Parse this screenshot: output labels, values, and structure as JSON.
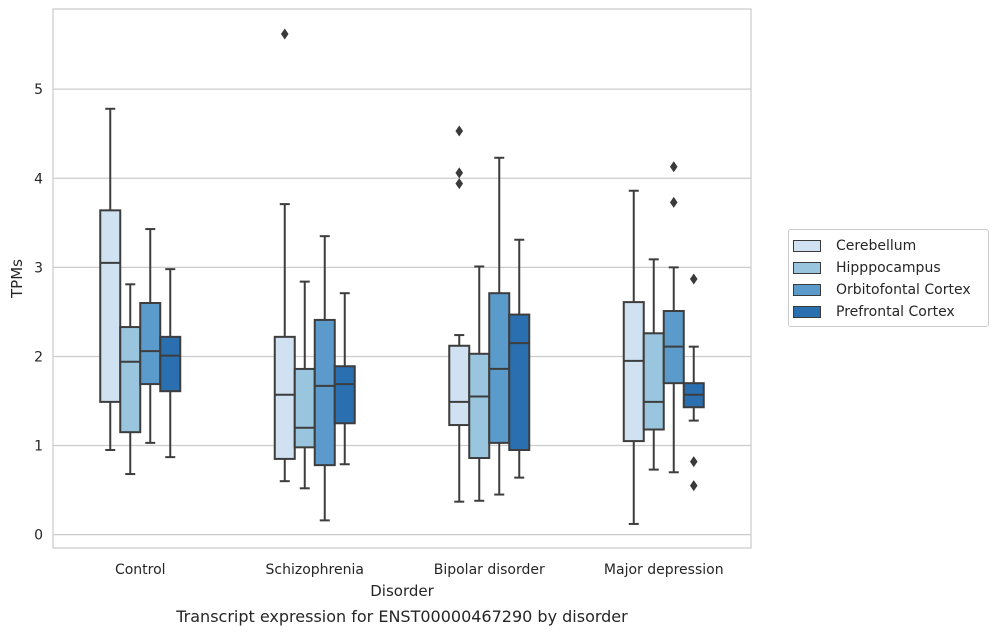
{
  "chart_data": {
    "type": "box",
    "title": "",
    "caption": "Transcript expression for ENST00000467290 by disorder",
    "xlabel": "Disorder",
    "ylabel": "TPMs",
    "ylim": [
      -0.15,
      5.9
    ],
    "yticks": [
      0,
      1,
      2,
      3,
      4,
      5
    ],
    "grid": "horizontal",
    "legend_position": "right",
    "categories": [
      "Control",
      "Schizophrenia",
      "Bipolar disorder",
      "Major depression"
    ],
    "series": [
      {
        "name": "Cerebellum",
        "color": "#d0e1f2",
        "boxes": [
          {
            "whisker_low": 0.95,
            "q1": 1.49,
            "median": 3.05,
            "q3": 3.64,
            "whisker_high": 4.78,
            "outliers": []
          },
          {
            "whisker_low": 0.6,
            "q1": 0.85,
            "median": 1.57,
            "q3": 2.22,
            "whisker_high": 3.71,
            "outliers": [
              5.62
            ]
          },
          {
            "whisker_low": 0.37,
            "q1": 1.23,
            "median": 1.49,
            "q3": 2.12,
            "whisker_high": 2.24,
            "outliers": [
              3.94,
              4.06,
              4.53
            ]
          },
          {
            "whisker_low": 0.12,
            "q1": 1.05,
            "median": 1.95,
            "q3": 2.61,
            "whisker_high": 3.86,
            "outliers": []
          }
        ]
      },
      {
        "name": "Hipppocampus",
        "color": "#9ac5de",
        "boxes": [
          {
            "whisker_low": 0.68,
            "q1": 1.15,
            "median": 1.94,
            "q3": 2.33,
            "whisker_high": 2.81,
            "outliers": []
          },
          {
            "whisker_low": 0.52,
            "q1": 0.98,
            "median": 1.2,
            "q3": 1.86,
            "whisker_high": 2.84,
            "outliers": []
          },
          {
            "whisker_low": 0.38,
            "q1": 0.86,
            "median": 1.55,
            "q3": 2.03,
            "whisker_high": 3.01,
            "outliers": []
          },
          {
            "whisker_low": 0.73,
            "q1": 1.18,
            "median": 1.49,
            "q3": 2.26,
            "whisker_high": 3.09,
            "outliers": []
          }
        ]
      },
      {
        "name": "Orbitofontal Cortex",
        "color": "#5b9bcb",
        "boxes": [
          {
            "whisker_low": 1.03,
            "q1": 1.69,
            "median": 2.06,
            "q3": 2.6,
            "whisker_high": 3.43,
            "outliers": []
          },
          {
            "whisker_low": 0.16,
            "q1": 0.78,
            "median": 1.67,
            "q3": 2.41,
            "whisker_high": 3.35,
            "outliers": []
          },
          {
            "whisker_low": 0.45,
            "q1": 1.03,
            "median": 1.86,
            "q3": 2.71,
            "whisker_high": 4.23,
            "outliers": []
          },
          {
            "whisker_low": 0.7,
            "q1": 1.7,
            "median": 2.11,
            "q3": 2.51,
            "whisker_high": 3.0,
            "outliers": [
              3.73,
              4.13
            ]
          }
        ]
      },
      {
        "name": "Prefrontal Cortex",
        "color": "#2a6fb0",
        "boxes": [
          {
            "whisker_low": 0.87,
            "q1": 1.61,
            "median": 2.01,
            "q3": 2.22,
            "whisker_high": 2.98,
            "outliers": []
          },
          {
            "whisker_low": 0.79,
            "q1": 1.25,
            "median": 1.69,
            "q3": 1.89,
            "whisker_high": 2.71,
            "outliers": []
          },
          {
            "whisker_low": 0.64,
            "q1": 0.95,
            "median": 2.15,
            "q3": 2.47,
            "whisker_high": 3.31,
            "outliers": []
          },
          {
            "whisker_low": 1.28,
            "q1": 1.43,
            "median": 1.57,
            "q3": 1.7,
            "whisker_high": 2.11,
            "outliers": [
              0.55,
              0.82,
              2.87
            ]
          }
        ]
      }
    ]
  }
}
